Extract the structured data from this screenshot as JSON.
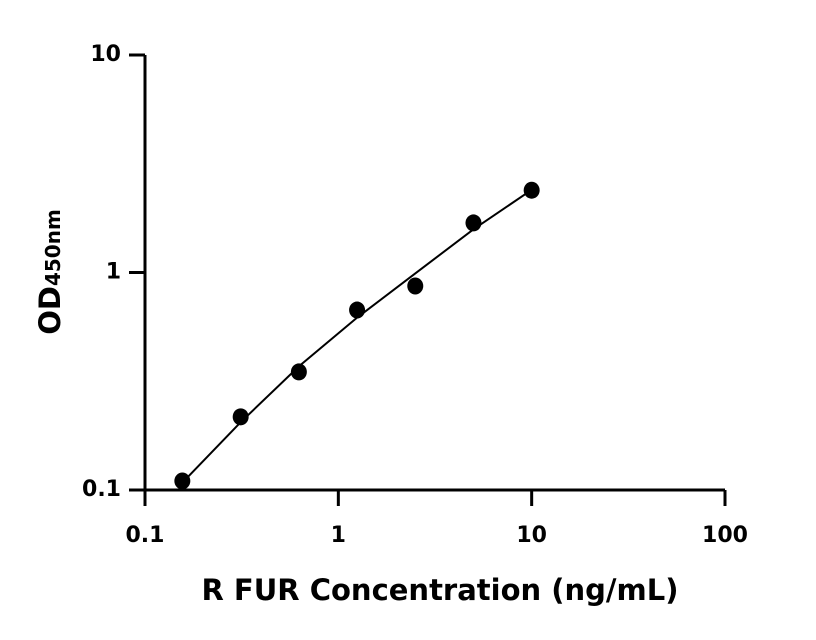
{
  "chart_data": {
    "type": "scatter",
    "xlabel": "R FUR Concentration (ng/mL)",
    "ylabel": "OD",
    "ylabel_subscript": "450nm",
    "x": [
      0.156,
      0.3125,
      0.625,
      1.25,
      2.5,
      5,
      10
    ],
    "series": [
      {
        "values": [
          0.11,
          0.217,
          0.349,
          0.672,
          0.867,
          1.69,
          2.39
        ],
        "color": "#000000",
        "style": "marker"
      },
      {
        "x": [
          0.156,
          0.3125,
          0.625,
          1.25,
          2.5,
          5,
          10
        ],
        "values": [
          0.108,
          0.205,
          0.37,
          0.62,
          0.99,
          1.58,
          2.4
        ],
        "color": "#000000",
        "style": "line"
      }
    ],
    "xscale": "log",
    "yscale": "log",
    "xlim": [
      0.1,
      100
    ],
    "ylim": [
      0.1,
      10
    ],
    "xticks": [
      0.1,
      1,
      10,
      100
    ],
    "yticks": [
      0.1,
      1,
      10
    ],
    "grid": false
  }
}
